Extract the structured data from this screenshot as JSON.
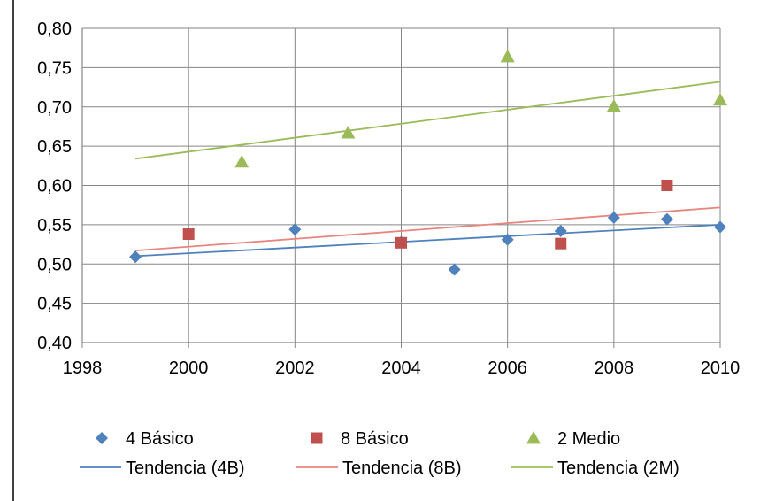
{
  "chart_data": {
    "type": "scatter",
    "xlim": [
      1998,
      2010
    ],
    "ylim": [
      0.4,
      0.8
    ],
    "x_ticks": [
      "1998",
      "2000",
      "2002",
      "2004",
      "2006",
      "2008",
      "2010"
    ],
    "x_tick_values": [
      1998,
      2000,
      2002,
      2004,
      2006,
      2008,
      2010
    ],
    "y_ticks": [
      "0,40",
      "0,45",
      "0,50",
      "0,55",
      "0,60",
      "0,65",
      "0,70",
      "0,75",
      "0,80"
    ],
    "y_tick_values": [
      0.4,
      0.45,
      0.5,
      0.55,
      0.6,
      0.65,
      0.7,
      0.75,
      0.8
    ],
    "grid": true,
    "legend_position": "bottom",
    "series": [
      {
        "name": "4 Básico",
        "marker": "diamond",
        "color": "#4F81BD",
        "points": [
          {
            "x": 1999,
            "y": 0.509
          },
          {
            "x": 2002,
            "y": 0.544
          },
          {
            "x": 2004,
            "y": 0.528
          },
          {
            "x": 2005,
            "y": 0.493
          },
          {
            "x": 2006,
            "y": 0.531
          },
          {
            "x": 2007,
            "y": 0.542
          },
          {
            "x": 2008,
            "y": 0.559
          },
          {
            "x": 2009,
            "y": 0.557
          },
          {
            "x": 2010,
            "y": 0.547
          }
        ]
      },
      {
        "name": "8 Básico",
        "marker": "square",
        "color": "#C0504D",
        "points": [
          {
            "x": 2000,
            "y": 0.538
          },
          {
            "x": 2004,
            "y": 0.527
          },
          {
            "x": 2007,
            "y": 0.526
          },
          {
            "x": 2009,
            "y": 0.6
          }
        ]
      },
      {
        "name": "2 Medio",
        "marker": "triangle",
        "color": "#9BBB59",
        "points": [
          {
            "x": 2001,
            "y": 0.63
          },
          {
            "x": 2003,
            "y": 0.667
          },
          {
            "x": 2006,
            "y": 0.764
          },
          {
            "x": 2008,
            "y": 0.701
          },
          {
            "x": 2010,
            "y": 0.709
          }
        ]
      }
    ],
    "trendlines": [
      {
        "name": "Tendencia (4B)",
        "color": "#4F81BD",
        "from": {
          "x": 1999,
          "y": 0.51
        },
        "to": {
          "x": 2010,
          "y": 0.55
        }
      },
      {
        "name": "Tendencia (8B)",
        "color": "#E8857F",
        "from": {
          "x": 1999,
          "y": 0.517
        },
        "to": {
          "x": 2010,
          "y": 0.572
        }
      },
      {
        "name": "Tendencia (2M)",
        "color": "#9BBB59",
        "from": {
          "x": 1999,
          "y": 0.634
        },
        "to": {
          "x": 2010,
          "y": 0.732
        }
      }
    ]
  }
}
